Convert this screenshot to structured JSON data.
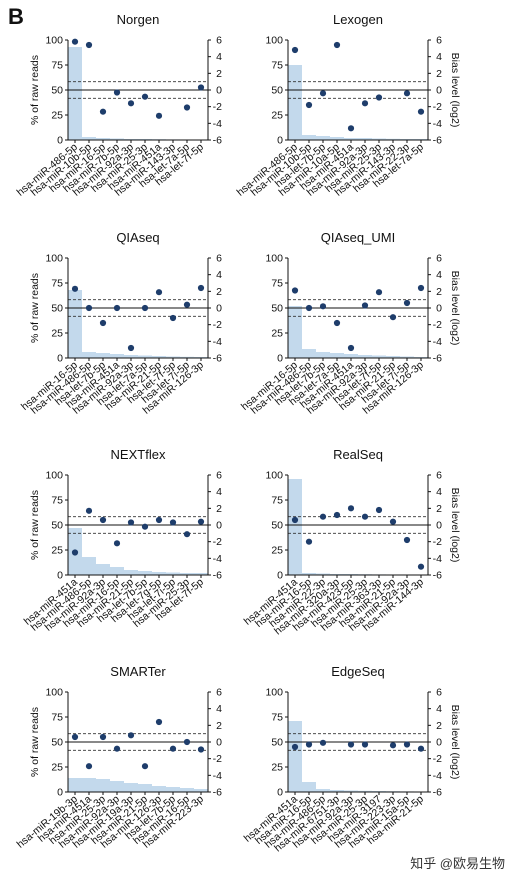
{
  "figure": {
    "panel_letter": "B",
    "watermark": "知乎 @欧易生物"
  },
  "chart_data": [
    {
      "type": "bar",
      "title": "Norgen",
      "ylabel": "% of raw reads",
      "y2label": "",
      "categories": [
        "hsa-miR-486-5p",
        "hsa-miR-10b-5p",
        "hsa-miR-16-5p",
        "hsa-miR-7b-5p",
        "hsa-miR-92a-3p",
        "hsa-miR-25-3p",
        "hsa-miR-451a",
        "hsa-miR-143-3p",
        "hsa-let-7a-5p",
        "hsa-let-7f-5p"
      ],
      "bar_values": [
        93,
        3,
        2,
        1.5,
        1,
        1,
        0.8,
        0.6,
        0.5,
        0.5
      ],
      "bias_values": [
        5.8,
        5.4,
        -2.6,
        -0.3,
        -1.6,
        -0.8,
        -3.1,
        null,
        -2.1,
        0.3
      ],
      "ylim": [
        0,
        100
      ],
      "yticks": [
        0,
        25,
        50,
        75,
        100
      ],
      "y2lim": [
        -6,
        6
      ],
      "y2ticks": [
        -6,
        -4,
        -2,
        0,
        2,
        4,
        6
      ],
      "threshold_lines": [
        1,
        -1
      ]
    },
    {
      "type": "bar",
      "title": "Lexogen",
      "ylabel": "",
      "y2label": "Bias level (log2)",
      "categories": [
        "hsa-miR-486-5p",
        "hsa-miR-10b-5p",
        "hsa-let-7b-5p",
        "hsa-miR-10a-5p",
        "hsa-miR-451a",
        "hsa-miR-92a-3p",
        "hsa-miR-25-3p",
        "hsa-miR-143-3p",
        "hsa-miR-22-3p",
        "hsa-let-7a-5p"
      ],
      "bar_values": [
        75,
        5,
        4,
        3,
        2,
        2,
        1.5,
        1.2,
        1,
        1
      ],
      "bias_values": [
        4.8,
        -1.8,
        -0.4,
        5.4,
        -4.6,
        -1.6,
        -0.9,
        null,
        -0.4,
        -2.6
      ],
      "ylim": [
        0,
        100
      ],
      "yticks": [
        0,
        25,
        50,
        75,
        100
      ],
      "y2lim": [
        -6,
        6
      ],
      "y2ticks": [
        -6,
        -4,
        -2,
        0,
        2,
        4,
        6
      ],
      "threshold_lines": [
        1,
        -1
      ]
    },
    {
      "type": "bar",
      "title": "QIAseq",
      "ylabel": "% of raw reads",
      "y2label": "",
      "categories": [
        "hsa-miR-16-5p",
        "hsa-miR-486-5p",
        "hsa-let-7b-5p",
        "hsa-miR-451a",
        "hsa-miR-92a-3p",
        "hsa-let-7a-5p",
        "hsa-miR-21-5p",
        "hsa-let-7f-5p",
        "hsa-let-7i-5p",
        "hsa-miR-126-3p"
      ],
      "bar_values": [
        68,
        6,
        5,
        4,
        3,
        2.5,
        2,
        1.5,
        1.2,
        1
      ],
      "bias_values": [
        2.3,
        0,
        -1.8,
        0,
        -4.8,
        0,
        1.9,
        -1.2,
        0.4,
        2.4
      ],
      "ylim": [
        0,
        100
      ],
      "yticks": [
        0,
        25,
        50,
        75,
        100
      ],
      "y2lim": [
        -6,
        6
      ],
      "y2ticks": [
        -6,
        -4,
        -2,
        0,
        2,
        4,
        6
      ],
      "threshold_lines": [
        1,
        -1
      ]
    },
    {
      "type": "bar",
      "title": "QIAseq_UMI",
      "ylabel": "",
      "y2label": "Bias level (log2)",
      "categories": [
        "hsa-miR-16-5p",
        "hsa-miR-486-5p",
        "hsa-let-7b-5p",
        "hsa-let-7a-5p",
        "hsa-miR-451a",
        "hsa-miR-92a-3p",
        "hsa-let-7f-5p",
        "hsa-miR-21-5p",
        "hsa-let-7i-5p",
        "hsa-miR-126-3p"
      ],
      "bar_values": [
        52,
        9,
        6,
        5,
        4,
        3,
        2.5,
        2,
        1.5,
        1
      ],
      "bias_values": [
        2.1,
        0,
        0.2,
        -1.8,
        -4.8,
        0.3,
        1.9,
        -1.1,
        0.6,
        2.4
      ],
      "ylim": [
        0,
        100
      ],
      "yticks": [
        0,
        25,
        50,
        75,
        100
      ],
      "y2lim": [
        -6,
        6
      ],
      "y2ticks": [
        -6,
        -4,
        -2,
        0,
        2,
        4,
        6
      ],
      "threshold_lines": [
        1,
        -1
      ]
    },
    {
      "type": "bar",
      "title": "NEXTflex",
      "ylabel": "% of raw reads",
      "y2label": "",
      "categories": [
        "hsa-miR-451a",
        "hsa-miR-486-5p",
        "hsa-miR-92a-3p",
        "hsa-miR-16-5p",
        "hsa-miR-21-5p",
        "hsa-let-7b-5p",
        "hsa-let-7g-5p",
        "hsa-let-7i-5p",
        "hsa-miR-25-3p",
        "hsa-let-7f-5p"
      ],
      "bar_values": [
        47,
        18,
        11,
        8,
        5,
        4,
        3,
        2.5,
        2,
        2
      ],
      "bias_values": [
        -3.3,
        1.7,
        0.6,
        -2.2,
        0.3,
        -0.2,
        0.6,
        0.3,
        -1.1,
        0.4
      ],
      "ylim": [
        0,
        100
      ],
      "yticks": [
        0,
        25,
        50,
        75,
        100
      ],
      "y2lim": [
        -6,
        6
      ],
      "y2ticks": [
        -6,
        -4,
        -2,
        0,
        2,
        4,
        6
      ],
      "threshold_lines": [
        1,
        -1
      ]
    },
    {
      "type": "bar",
      "title": "RealSeq",
      "ylabel": "",
      "y2label": "Bias level (log2)",
      "categories": [
        "hsa-miR-451a",
        "hsa-miR-16-5p",
        "hsa-miR-22-3p",
        "hsa-miR-320a-3p",
        "hsa-miR-423-5p",
        "hsa-miR-25-3p",
        "hsa-miR-363-3p",
        "hsa-miR-21-5p",
        "hsa-miR-92a-3p",
        "hsa-miR-144-3p"
      ],
      "bar_values": [
        96,
        2,
        1.5,
        1,
        1,
        0.8,
        0.6,
        0.5,
        0.5,
        0.4
      ],
      "bias_values": [
        0.6,
        -2.0,
        1.0,
        1.2,
        2.0,
        1.0,
        1.8,
        0.4,
        -1.8,
        -5.0
      ],
      "ylim": [
        0,
        100
      ],
      "yticks": [
        0,
        25,
        50,
        75,
        100
      ],
      "y2lim": [
        -6,
        6
      ],
      "y2ticks": [
        -6,
        -4,
        -2,
        0,
        2,
        4,
        6
      ],
      "threshold_lines": [
        1,
        -1
      ]
    },
    {
      "type": "bar",
      "title": "SMARTer",
      "ylabel": "% of raw reads",
      "y2label": "",
      "categories": [
        "hsa-miR-19b-3p",
        "hsa-miR-451a",
        "hsa-miR-25-3p",
        "hsa-miR-92a-3p",
        "hsa-miR-19a-3p",
        "hsa-miR-21-5p",
        "hsa-miR-126-3p",
        "hsa-let-7b-5p",
        "hsa-miR-16-5p",
        "hsa-miR-223-3p"
      ],
      "bar_values": [
        14,
        14,
        13,
        11,
        9,
        8,
        6,
        5,
        4,
        3
      ],
      "bias_values": [
        0.6,
        -2.9,
        0.6,
        -0.8,
        0.8,
        -2.9,
        2.4,
        -0.8,
        0,
        -0.9
      ],
      "ylim": [
        0,
        100
      ],
      "yticks": [
        0,
        25,
        50,
        75,
        100
      ],
      "y2lim": [
        -6,
        6
      ],
      "y2ticks": [
        -6,
        -4,
        -2,
        0,
        2,
        4,
        6
      ],
      "threshold_lines": [
        1,
        -1
      ]
    },
    {
      "type": "bar",
      "title": "EdgeSeq",
      "ylabel": "",
      "y2label": "Bias level (log2)",
      "categories": [
        "hsa-miR-451a",
        "hsa-miR-16-5p",
        "hsa-miR-486-5p",
        "hsa-miR-6751-3p",
        "hsa-miR-92a-3p",
        "hsa-miR-25-3p",
        "hsa-miR-3197",
        "hsa-miR-223-3p",
        "hsa-miR-15a-5p",
        "hsa-miR-21-5p"
      ],
      "bar_values": [
        71,
        10,
        3,
        2,
        1.5,
        1.2,
        1,
        0.8,
        0.6,
        0.5
      ],
      "bias_values": [
        -0.6,
        -0.3,
        -0.1,
        null,
        -0.3,
        -0.3,
        null,
        -0.4,
        -0.3,
        -0.8
      ],
      "ylim": [
        0,
        100
      ],
      "yticks": [
        0,
        25,
        50,
        75,
        100
      ],
      "y2lim": [
        -6,
        6
      ],
      "y2ticks": [
        -6,
        -4,
        -2,
        0,
        2,
        4,
        6
      ],
      "threshold_lines": [
        1,
        -1
      ]
    }
  ]
}
